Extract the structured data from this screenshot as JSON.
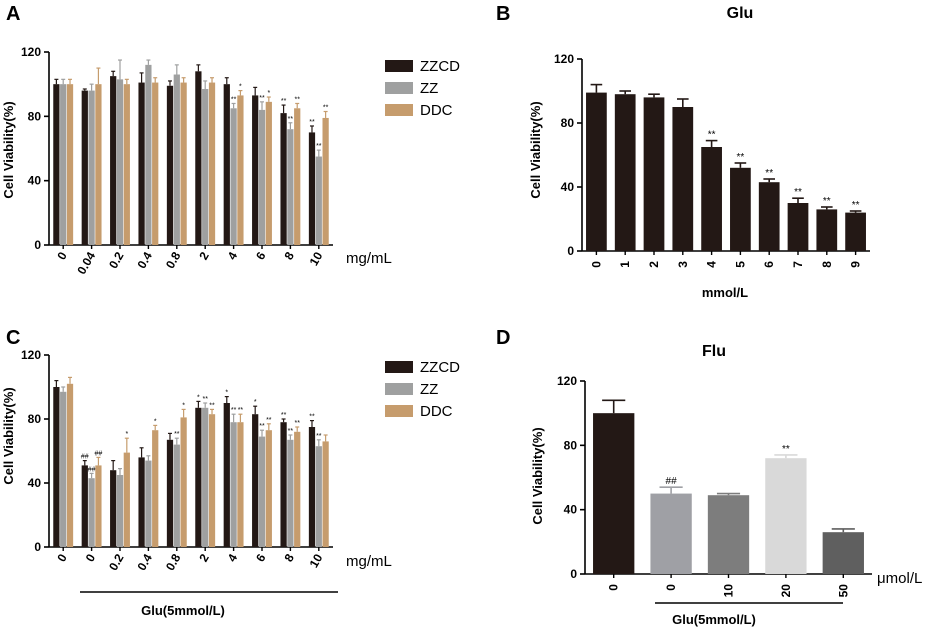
{
  "colors": {
    "ZZCD": "#231815",
    "ZZ": "#9fa0a0",
    "DDC": "#c69c6d",
    "flu_0": "#231815",
    "flu_1": "#9fa0a5",
    "flu_2": "#7d7d7d",
    "flu_3": "#d9d9d9",
    "flu_4": "#5f5f5f"
  },
  "chart_data": [
    {
      "panel": "A",
      "type": "bar",
      "title": "",
      "ylabel": "Cell Viability(%)",
      "xunit": "mg/mL",
      "ylim": [
        0,
        120
      ],
      "yticks": [
        0,
        40,
        80,
        120
      ],
      "categories": [
        "0",
        "0.04",
        "0.2",
        "0.4",
        "0.8",
        "2",
        "4",
        "6",
        "8",
        "10"
      ],
      "series": [
        {
          "name": "ZZCD",
          "values": [
            100,
            96,
            105,
            101,
            99,
            108,
            100,
            93,
            82,
            70
          ],
          "errors": [
            3,
            1,
            3,
            6,
            3,
            4,
            4,
            5,
            5,
            4
          ],
          "sig": [
            "",
            "",
            "",
            "",
            "",
            "",
            "",
            "",
            "**",
            "**"
          ]
        },
        {
          "name": "ZZ",
          "values": [
            100,
            96,
            103,
            112,
            106,
            97,
            85,
            84,
            72,
            55
          ],
          "errors": [
            3,
            4,
            12,
            3,
            6,
            5,
            3,
            5,
            4,
            4
          ],
          "sig": [
            "",
            "",
            "",
            "",
            "",
            "",
            "**",
            "**",
            "**",
            "**"
          ]
        },
        {
          "name": "DDC",
          "values": [
            100,
            100,
            100,
            101,
            101,
            101,
            93,
            89,
            85,
            79
          ],
          "errors": [
            3,
            10,
            3,
            3,
            3,
            3,
            3,
            3,
            3,
            4
          ],
          "sig": [
            "",
            "",
            "",
            "",
            "",
            "",
            "*",
            "*",
            "**",
            "**"
          ]
        }
      ]
    },
    {
      "panel": "B",
      "type": "bar",
      "title": "Glu",
      "ylabel": "Cell Viability(%)",
      "xlabel": "mmol/L",
      "ylim": [
        0,
        120
      ],
      "yticks": [
        0,
        40,
        80,
        120
      ],
      "categories": [
        "0",
        "1",
        "2",
        "3",
        "4",
        "5",
        "6",
        "7",
        "8",
        "9"
      ],
      "values": [
        99,
        98,
        96,
        90,
        65,
        52,
        43,
        30,
        26,
        24
      ],
      "errors": [
        5,
        2,
        2,
        5,
        4,
        3,
        2,
        3,
        1.5,
        1
      ],
      "sig": [
        "",
        "",
        "",
        "",
        "**",
        "**",
        "**",
        "**",
        "**",
        "**"
      ]
    },
    {
      "panel": "C",
      "type": "bar",
      "title": "",
      "ylabel": "Cell Viability(%)",
      "xunit": "mg/mL",
      "xlabel": "Glu(5mmol/L)",
      "ylim": [
        0,
        120
      ],
      "yticks": [
        0,
        40,
        80,
        120
      ],
      "categories": [
        "0",
        "0",
        "0.2",
        "0.4",
        "0.8",
        "2",
        "4",
        "6",
        "8",
        "10"
      ],
      "series": [
        {
          "name": "ZZCD",
          "values": [
            100,
            51,
            48,
            56,
            67,
            87,
            90,
            83,
            78,
            75
          ],
          "errors": [
            4,
            3,
            6,
            6,
            4,
            4,
            4,
            5,
            2,
            4
          ],
          "sig": [
            "",
            "##",
            "",
            "",
            "",
            "*",
            "*",
            "*",
            "**",
            "**"
          ]
        },
        {
          "name": "ZZ",
          "values": [
            97,
            43,
            45,
            54,
            64,
            87,
            78,
            69,
            67,
            63
          ],
          "errors": [
            3,
            3,
            4,
            3,
            4,
            3,
            5,
            4,
            3,
            4
          ],
          "sig": [
            "",
            "##",
            "",
            "",
            "**",
            "**",
            "**",
            "**",
            "**",
            "**"
          ]
        },
        {
          "name": "DDC",
          "values": [
            102,
            51,
            59,
            73,
            81,
            83,
            78,
            73,
            72,
            66
          ],
          "errors": [
            4,
            5,
            9,
            3,
            5,
            3,
            5,
            4,
            3,
            4
          ],
          "sig": [
            "",
            "##",
            "*",
            "*",
            "*",
            "**",
            "**",
            "**",
            "**",
            ""
          ]
        }
      ]
    },
    {
      "panel": "D",
      "type": "bar",
      "title": "Flu",
      "ylabel": "Cell Viability(%)",
      "xunit": "μmol/L",
      "xlabel": "Glu(5mmol/L)",
      "ylim": [
        0,
        120
      ],
      "yticks": [
        0,
        40,
        80,
        120
      ],
      "categories": [
        "0",
        "0",
        "10",
        "20",
        "50"
      ],
      "values": [
        100,
        50,
        49,
        72,
        26
      ],
      "errors": [
        8,
        4,
        1,
        2,
        2
      ],
      "sig": [
        "",
        "##",
        "",
        "**",
        ""
      ]
    }
  ]
}
